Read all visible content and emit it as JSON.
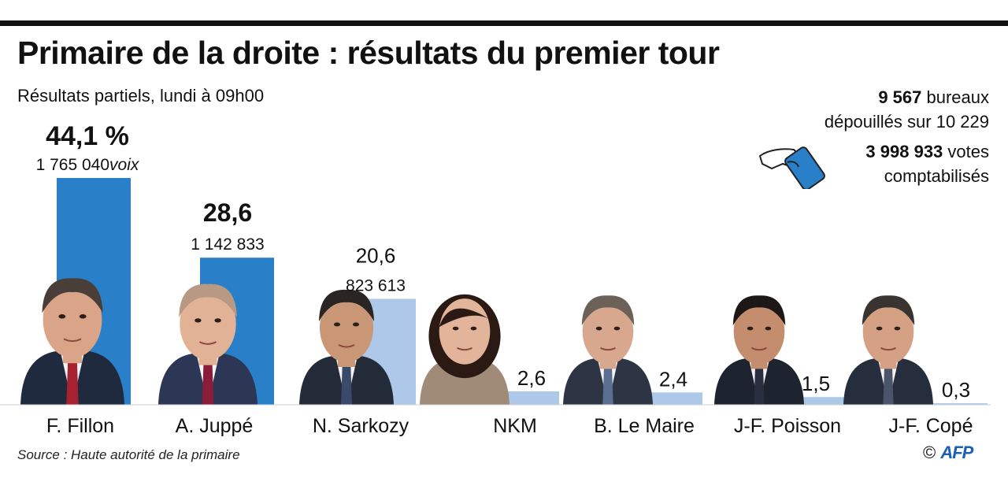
{
  "title": "Primaire de la droite : résultats du premier tour",
  "subtitle": "Résultats partiels, lundi à 09h00",
  "stats": {
    "bureaux_count": "9 567",
    "bureaux_text": " bureaux",
    "bureaux_line2": "dépouillés sur 10 229",
    "votes_count": "3 998 933",
    "votes_text": " votes",
    "votes_line2": "comptabilisés"
  },
  "source": "Source : Haute autorité de la primaire",
  "credit": {
    "symbol": "©",
    "agency": "AFP"
  },
  "colors": {
    "top_bars": "#2a7fc9",
    "other_bars": "#aec8ea"
  },
  "icons": [
    "ballot-hand-icon",
    "candidate-photo"
  ],
  "chart_data": {
    "type": "bar",
    "categories": [
      "F. Fillon",
      "A. Juppé",
      "N. Sarkozy",
      "NKM",
      "B. Le Maire",
      "J-F. Poisson",
      "J-F. Copé"
    ],
    "values": [
      44.1,
      28.6,
      20.6,
      2.6,
      2.4,
      1.5,
      0.3
    ],
    "value_labels": [
      "44,1 %",
      "28,6",
      "20,6",
      "2,6",
      "2,4",
      "1,5",
      "0,3"
    ],
    "votes": [
      "1 765 040",
      "1 142 833",
      "823 613",
      "",
      "",
      "",
      ""
    ],
    "votes_unit": "voix",
    "highlighted": [
      true,
      true,
      false,
      false,
      false,
      false,
      false
    ],
    "ylim": [
      0,
      44.1
    ]
  }
}
